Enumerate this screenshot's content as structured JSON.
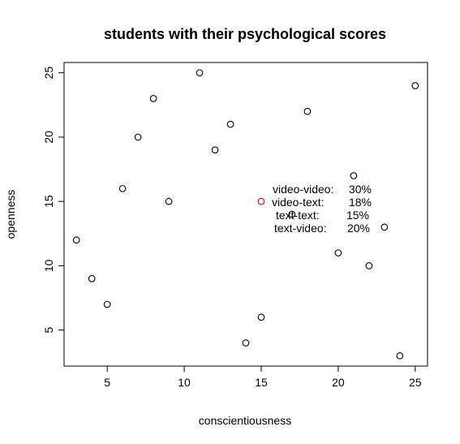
{
  "chart_data": {
    "type": "scatter",
    "title": "students with their psychological scores",
    "xlabel": "conscientiousness",
    "ylabel": "openness",
    "xlim": [
      2.2,
      25.8
    ],
    "ylim": [
      2.2,
      25.8
    ],
    "xticks": [
      5,
      10,
      15,
      20,
      25
    ],
    "yticks": [
      5,
      10,
      15,
      20,
      25
    ],
    "grid": false,
    "series": [
      {
        "color": "#000000",
        "points": [
          {
            "x": 3,
            "y": 12
          },
          {
            "x": 4,
            "y": 9
          },
          {
            "x": 5,
            "y": 7
          },
          {
            "x": 6,
            "y": 16
          },
          {
            "x": 7,
            "y": 20
          },
          {
            "x": 8,
            "y": 23
          },
          {
            "x": 9,
            "y": 15
          },
          {
            "x": 11,
            "y": 25
          },
          {
            "x": 12,
            "y": 19
          },
          {
            "x": 13,
            "y": 21
          },
          {
            "x": 14,
            "y": 4
          },
          {
            "x": 15,
            "y": 6
          },
          {
            "x": 17,
            "y": 14
          },
          {
            "x": 18,
            "y": 22
          },
          {
            "x": 20,
            "y": 11
          },
          {
            "x": 21,
            "y": 17
          },
          {
            "x": 22,
            "y": 10
          },
          {
            "x": 23,
            "y": 13
          },
          {
            "x": 24,
            "y": 3
          },
          {
            "x": 25,
            "y": 24
          }
        ]
      },
      {
        "color": "#e8000b",
        "points": [
          {
            "x": 15,
            "y": 15
          }
        ]
      }
    ],
    "annotation": {
      "anchor": {
        "x": 15,
        "y": 15
      },
      "lines": [
        {
          "label": "video-video:",
          "value": "30%"
        },
        {
          "label": "video-text:",
          "value": "18%"
        },
        {
          "label": "text-text:",
          "value": "15%"
        },
        {
          "label": "text-video:",
          "value": "20%"
        }
      ]
    }
  }
}
